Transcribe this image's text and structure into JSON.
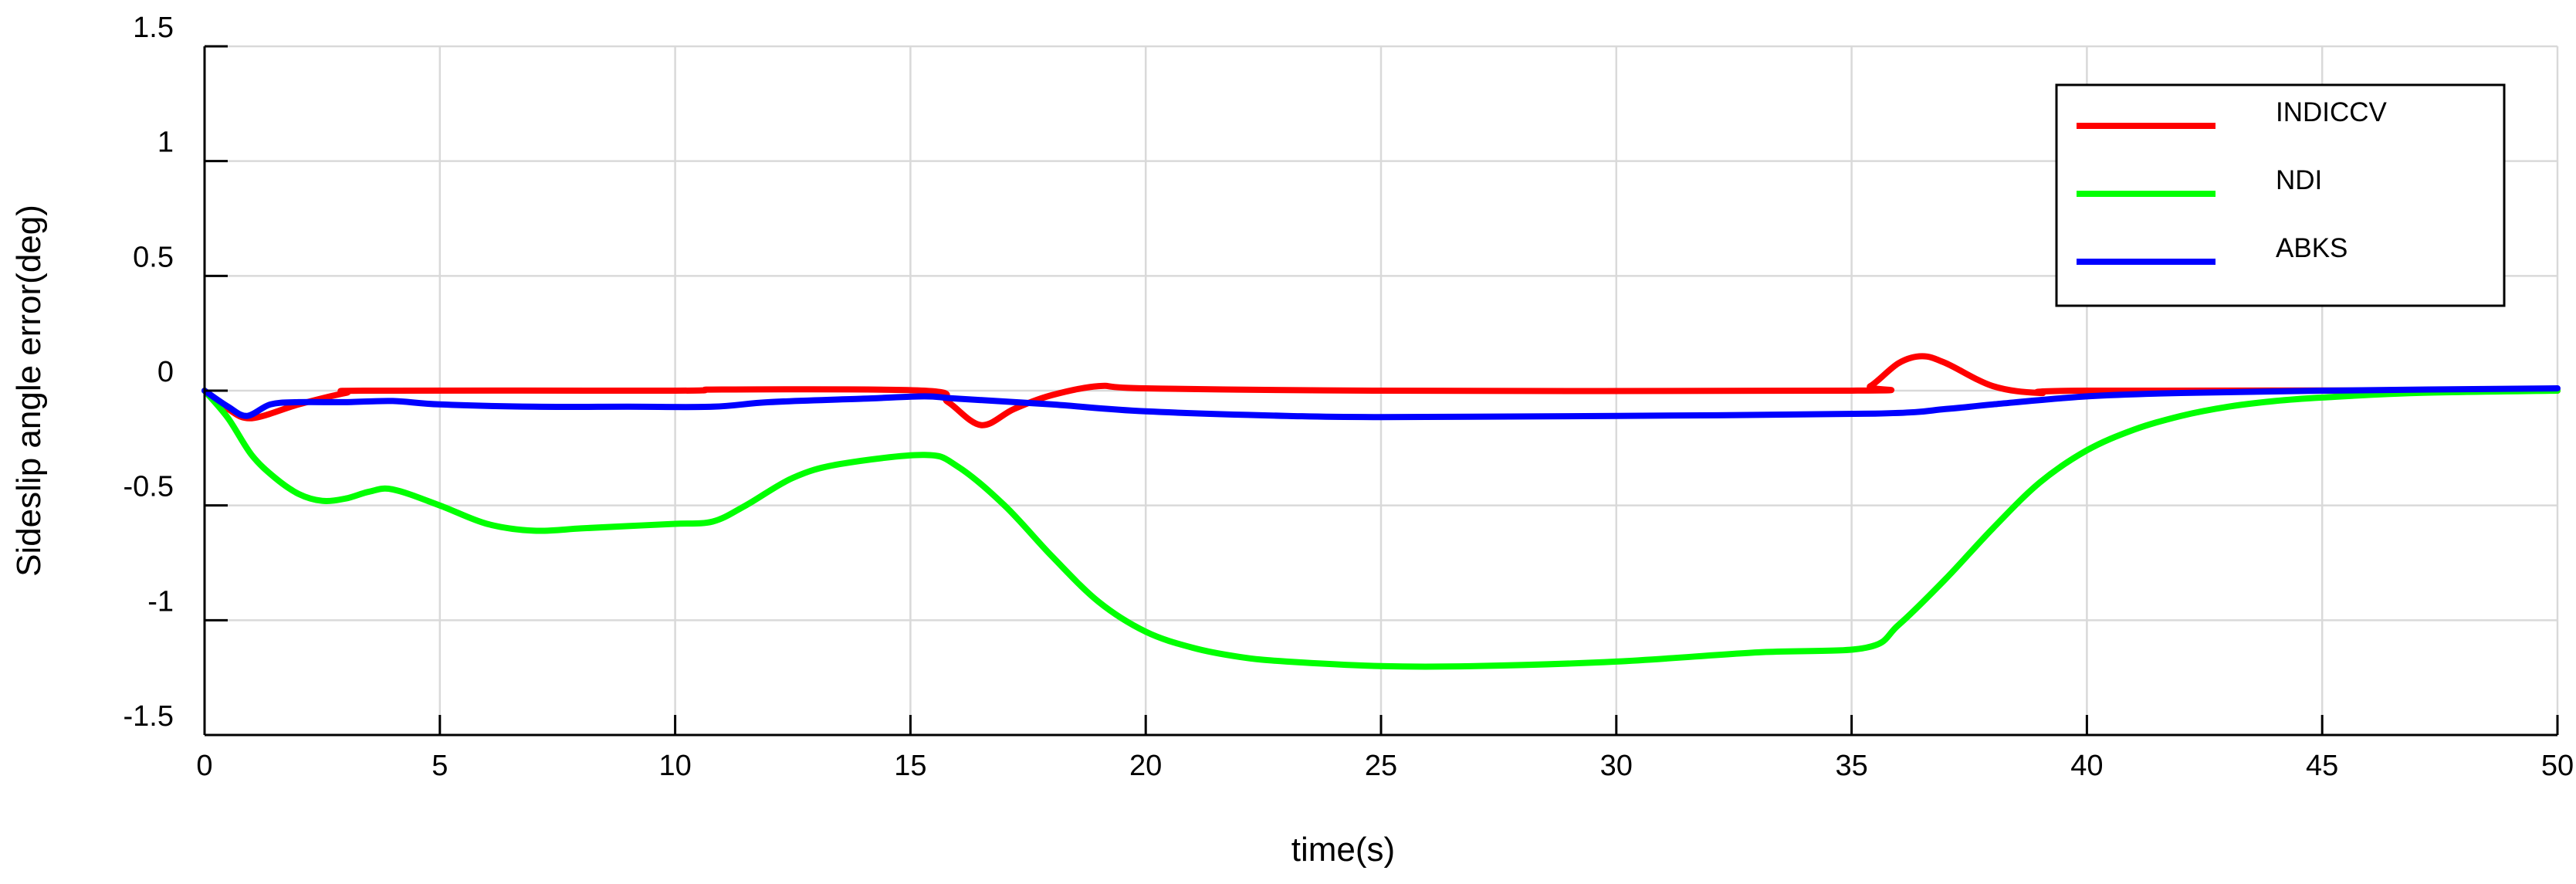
{
  "chart_data": {
    "type": "line",
    "title": "",
    "xlabel": "time(s)",
    "ylabel": "Sideslip angle error(deg)",
    "xlim": [
      0,
      50
    ],
    "ylim": [
      -1.5,
      1.5
    ],
    "xticks": [
      0,
      5,
      10,
      15,
      20,
      25,
      30,
      35,
      40,
      45,
      50
    ],
    "yticks": [
      -1.5,
      -1,
      -0.5,
      0,
      0.5,
      1,
      1.5
    ],
    "xtick_labels": [
      "0",
      "5",
      "10",
      "15",
      "20",
      "25",
      "30",
      "35",
      "40",
      "45",
      "50"
    ],
    "ytick_labels": [
      "-1.5",
      "-1",
      "-0.5",
      "0",
      "0.5",
      "1",
      "1.5"
    ],
    "grid": true,
    "legend_position": "top-right",
    "series": [
      {
        "name": "INDICCV",
        "color": "#ff0000",
        "points": [
          [
            0,
            0
          ],
          [
            0.5,
            -0.08
          ],
          [
            1,
            -0.12
          ],
          [
            2,
            -0.06
          ],
          [
            3,
            -0.01
          ],
          [
            3.5,
            0
          ],
          [
            10,
            0
          ],
          [
            11,
            0.005
          ],
          [
            15.3,
            0
          ],
          [
            15.8,
            -0.05
          ],
          [
            16.5,
            -0.15
          ],
          [
            17.2,
            -0.08
          ],
          [
            18,
            -0.02
          ],
          [
            19,
            0.02
          ],
          [
            20,
            0.01
          ],
          [
            25,
            0
          ],
          [
            35,
            0
          ],
          [
            35.4,
            0.02
          ],
          [
            36,
            0.12
          ],
          [
            36.5,
            0.15
          ],
          [
            37,
            0.12
          ],
          [
            38,
            0.02
          ],
          [
            39,
            -0.01
          ],
          [
            40,
            0
          ],
          [
            50,
            0
          ]
        ]
      },
      {
        "name": "NDI",
        "color": "#00ff00",
        "points": [
          [
            0,
            0
          ],
          [
            0.5,
            -0.12
          ],
          [
            1,
            -0.28
          ],
          [
            1.5,
            -0.38
          ],
          [
            2,
            -0.45
          ],
          [
            2.5,
            -0.48
          ],
          [
            3,
            -0.47
          ],
          [
            3.5,
            -0.44
          ],
          [
            4,
            -0.43
          ],
          [
            5,
            -0.5
          ],
          [
            6,
            -0.58
          ],
          [
            7,
            -0.61
          ],
          [
            8,
            -0.6
          ],
          [
            9,
            -0.59
          ],
          [
            10,
            -0.58
          ],
          [
            10.8,
            -0.57
          ],
          [
            11.5,
            -0.5
          ],
          [
            12.5,
            -0.38
          ],
          [
            13.5,
            -0.32
          ],
          [
            15.3,
            -0.28
          ],
          [
            16,
            -0.33
          ],
          [
            17,
            -0.5
          ],
          [
            18,
            -0.72
          ],
          [
            19,
            -0.92
          ],
          [
            20,
            -1.05
          ],
          [
            21,
            -1.12
          ],
          [
            22,
            -1.16
          ],
          [
            23,
            -1.18
          ],
          [
            25,
            -1.2
          ],
          [
            27,
            -1.2
          ],
          [
            30,
            -1.18
          ],
          [
            33,
            -1.14
          ],
          [
            35.3,
            -1.12
          ],
          [
            36,
            -1.02
          ],
          [
            37,
            -0.82
          ],
          [
            38,
            -0.6
          ],
          [
            39,
            -0.4
          ],
          [
            40,
            -0.26
          ],
          [
            41,
            -0.17
          ],
          [
            42,
            -0.11
          ],
          [
            43,
            -0.07
          ],
          [
            44,
            -0.045
          ],
          [
            45,
            -0.03
          ],
          [
            47,
            -0.01
          ],
          [
            50,
            0
          ]
        ]
      },
      {
        "name": "ABKS",
        "color": "#0000ff",
        "points": [
          [
            0,
            0
          ],
          [
            0.5,
            -0.07
          ],
          [
            0.9,
            -0.11
          ],
          [
            1.4,
            -0.06
          ],
          [
            2,
            -0.05
          ],
          [
            3,
            -0.05
          ],
          [
            4,
            -0.045
          ],
          [
            5,
            -0.06
          ],
          [
            7,
            -0.07
          ],
          [
            9,
            -0.07
          ],
          [
            10.8,
            -0.07
          ],
          [
            12,
            -0.05
          ],
          [
            14,
            -0.035
          ],
          [
            15.3,
            -0.025
          ],
          [
            16,
            -0.035
          ],
          [
            18,
            -0.06
          ],
          [
            20,
            -0.09
          ],
          [
            23,
            -0.11
          ],
          [
            25,
            -0.115
          ],
          [
            30,
            -0.11
          ],
          [
            35.5,
            -0.1
          ],
          [
            37,
            -0.08
          ],
          [
            38,
            -0.06
          ],
          [
            40,
            -0.025
          ],
          [
            42,
            -0.01
          ],
          [
            45,
            0
          ],
          [
            50,
            0.01
          ]
        ]
      }
    ]
  }
}
